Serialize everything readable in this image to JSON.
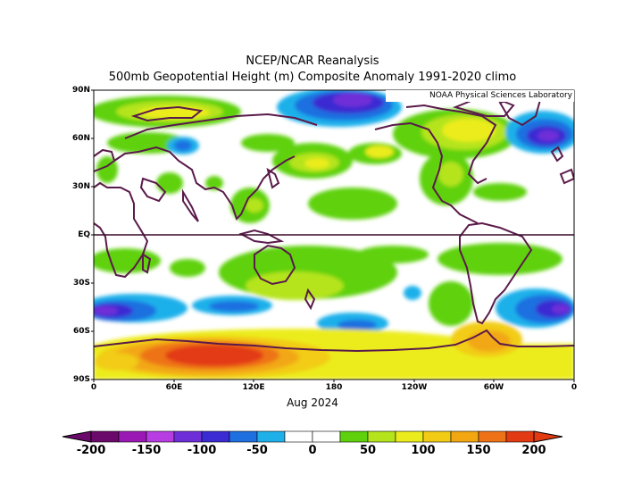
{
  "title": "NCEP/NCAR Reanalysis",
  "subtitle": "500mb Geopotential Height (m) Composite Anomaly 1991-2020 climo",
  "credit": "NOAA Physical Sciences Laboratory",
  "period": "Aug 2024",
  "lat_labels": [
    "90N",
    "60N",
    "30N",
    "EQ",
    "30S",
    "60S",
    "90S"
  ],
  "lon_labels": [
    "0",
    "60E",
    "120E",
    "180",
    "120W",
    "60W",
    "0"
  ],
  "colorbar": {
    "labels": [
      "-200",
      "-150",
      "-100",
      "-50",
      "0",
      "50",
      "100",
      "150",
      "200"
    ],
    "colors": [
      "#6a0a6a",
      "#9a19b4",
      "#b73de2",
      "#6f2fd8",
      "#3a2bd2",
      "#1e6fe0",
      "#1fb0ea",
      "#ffffff",
      "#ffffff",
      "#5fd10c",
      "#b5e41c",
      "#ecec1c",
      "#f2cc14",
      "#f2a712",
      "#ee7318",
      "#e23a12"
    ]
  },
  "map_colors": {
    "coast": "#5a1a4a",
    "equator": "#3a0a2a"
  }
}
